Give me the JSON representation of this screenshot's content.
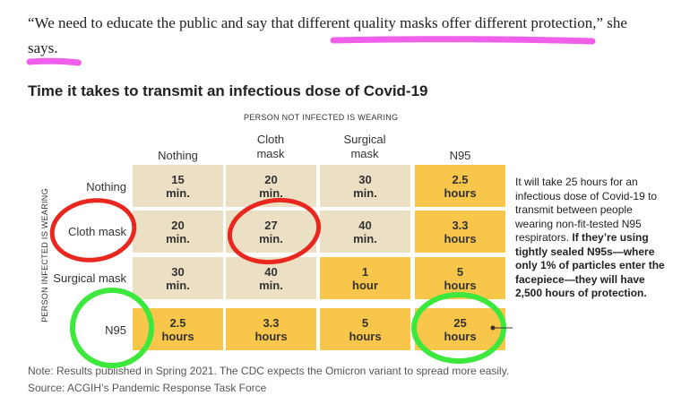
{
  "quote": {
    "text_before": "“We need to educate the public and say that ",
    "text_highlight": "different quality masks offer different protection,",
    "text_after": "” she says."
  },
  "chart_title": "Time it takes to transmit an infectious dose of Covid-19",
  "column_axis_label": "PERSON NOT INFECTED IS WEARING",
  "row_axis_label": "PERSON INFECTED IS WEARING",
  "columns": [
    "Nothing",
    "Cloth mask",
    "Surgical mask",
    "N95"
  ],
  "rows": [
    "Nothing",
    "Cloth mask",
    "Surgical mask",
    "N95"
  ],
  "cells": [
    [
      {
        "value": "15",
        "unit": "min."
      },
      {
        "value": "20",
        "unit": "min."
      },
      {
        "value": "30",
        "unit": "min."
      },
      {
        "value": "2.5",
        "unit": "hours"
      }
    ],
    [
      {
        "value": "20",
        "unit": "min."
      },
      {
        "value": "27",
        "unit": "min."
      },
      {
        "value": "40",
        "unit": "min."
      },
      {
        "value": "3.3",
        "unit": "hours"
      }
    ],
    [
      {
        "value": "30",
        "unit": "min."
      },
      {
        "value": "40",
        "unit": "min."
      },
      {
        "value": "1",
        "unit": "hour"
      },
      {
        "value": "5",
        "unit": "hours"
      }
    ],
    [
      {
        "value": "2.5",
        "unit": "hours"
      },
      {
        "value": "3.3",
        "unit": "hours"
      },
      {
        "value": "5",
        "unit": "hours"
      },
      {
        "value": "25",
        "unit": "hours"
      }
    ]
  ],
  "side_note": {
    "plain": "It will take 25 hours for an infectious dose of Covid-19 to transmit between people wearing non-fit-tested N95 respirators. ",
    "bold": "If they’re using tightly sealed N95s—where only 1% of particles enter the facepiece—they will have 2,500 hours of protection."
  },
  "note": "Note: Results published in Spring 2021. The CDC expects the Omicron variant to spread more easily.",
  "source": "Source: ACGIH’s Pandemic Response Task Force",
  "colors": {
    "beige": "#ece0c4",
    "yellow": "#f8c64a",
    "highlight_pink": "#f04ce8",
    "circle_red": "#e8281e",
    "circle_green": "#3ce83c"
  }
}
